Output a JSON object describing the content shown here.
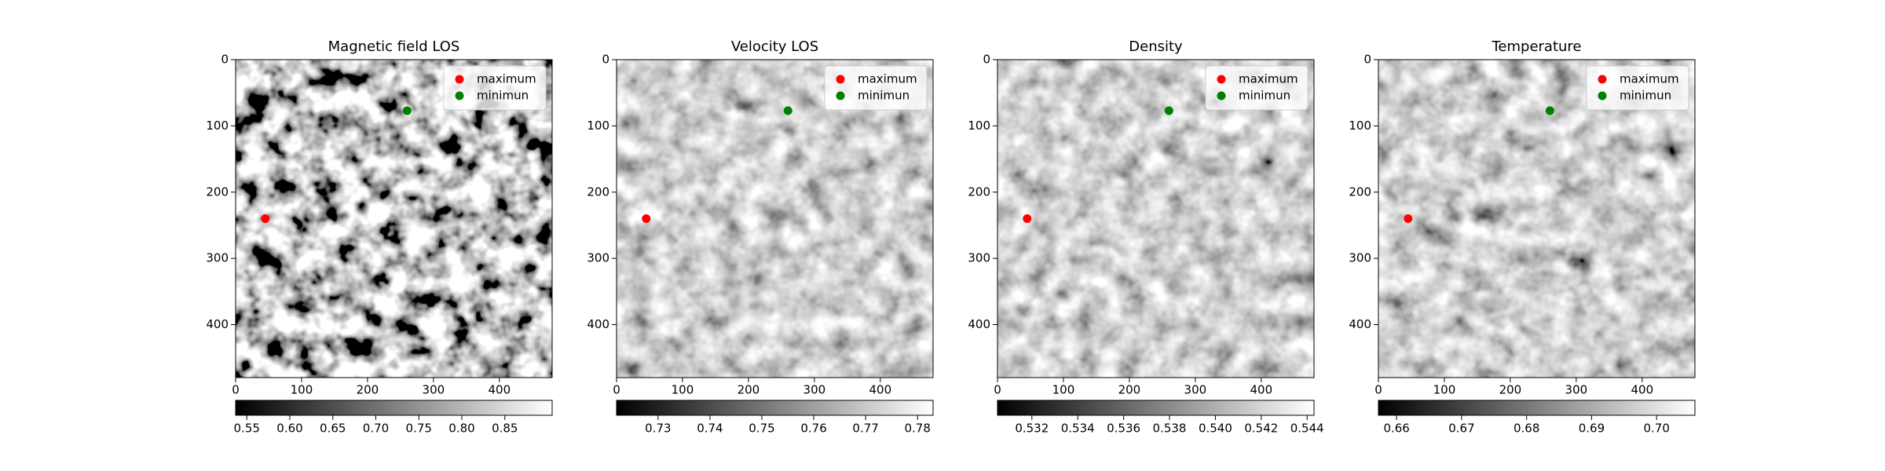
{
  "chart_data": [
    {
      "type": "scatter",
      "title": "Magnetic field LOS",
      "xlim": [
        0,
        480
      ],
      "ylim": [
        480,
        0
      ],
      "xticks": [
        0,
        100,
        200,
        300,
        400
      ],
      "yticks": [
        0,
        100,
        200,
        300,
        400
      ],
      "legend": "upper right",
      "series": [
        {
          "name": "maximum",
          "color": "red",
          "x": [
            45
          ],
          "y": [
            240
          ]
        },
        {
          "name": "minimun",
          "color": "green",
          "x": [
            260
          ],
          "y": [
            77
          ]
        }
      ],
      "colorbar": {
        "cmap": "gray",
        "clim": [
          0.537,
          0.905
        ],
        "ticks": [
          0.55,
          {
            "value": 0.6,
            "label": "0.60"
          },
          0.65,
          {
            "value": 0.7,
            "label": "0.70"
          },
          0.75,
          {
            "value": 0.8,
            "label": "0.80"
          },
          0.85
        ]
      }
    },
    {
      "type": "scatter",
      "title": "Velocity LOS",
      "xlim": [
        0,
        480
      ],
      "ylim": [
        480,
        0
      ],
      "xticks": [
        0,
        100,
        200,
        300,
        400
      ],
      "yticks": [
        0,
        100,
        200,
        300,
        400
      ],
      "legend": "upper right",
      "series": [
        {
          "name": "maximum",
          "color": "red",
          "x": [
            45
          ],
          "y": [
            240
          ]
        },
        {
          "name": "minimun",
          "color": "green",
          "x": [
            260
          ],
          "y": [
            77
          ]
        }
      ],
      "colorbar": {
        "cmap": "gray",
        "clim": [
          0.722,
          0.783
        ],
        "ticks": [
          0.73,
          0.74,
          0.75,
          0.76,
          0.77,
          0.78
        ]
      }
    },
    {
      "type": "scatter",
      "title": "Density",
      "xlim": [
        0,
        480
      ],
      "ylim": [
        480,
        0
      ],
      "xticks": [
        0,
        100,
        200,
        300,
        400
      ],
      "yticks": [
        0,
        100,
        200,
        300,
        400
      ],
      "legend": "upper right",
      "series": [
        {
          "name": "maximum",
          "color": "red",
          "x": [
            45
          ],
          "y": [
            240
          ]
        },
        {
          "name": "minimun",
          "color": "green",
          "x": [
            260
          ],
          "y": [
            77
          ]
        }
      ],
      "colorbar": {
        "cmap": "gray",
        "clim": [
          0.5305,
          0.5443
        ],
        "ticks": [
          0.532,
          0.534,
          0.536,
          0.538,
          {
            "value": 0.54,
            "label": "0.540"
          },
          0.542,
          0.544
        ]
      }
    },
    {
      "type": "scatter",
      "title": "Temperature",
      "xlim": [
        0,
        480
      ],
      "ylim": [
        480,
        0
      ],
      "xticks": [
        0,
        100,
        200,
        300,
        400
      ],
      "yticks": [
        0,
        100,
        200,
        300,
        400
      ],
      "legend": "upper right",
      "series": [
        {
          "name": "maximum",
          "color": "red",
          "x": [
            45
          ],
          "y": [
            240
          ]
        },
        {
          "name": "minimun",
          "color": "green",
          "x": [
            260
          ],
          "y": [
            77
          ]
        }
      ],
      "colorbar": {
        "cmap": "gray",
        "clim": [
          0.6572,
          0.7059
        ],
        "ticks": [
          0.66,
          0.67,
          0.68,
          0.69,
          {
            "value": 0.7,
            "label": "0.70"
          }
        ]
      }
    }
  ]
}
